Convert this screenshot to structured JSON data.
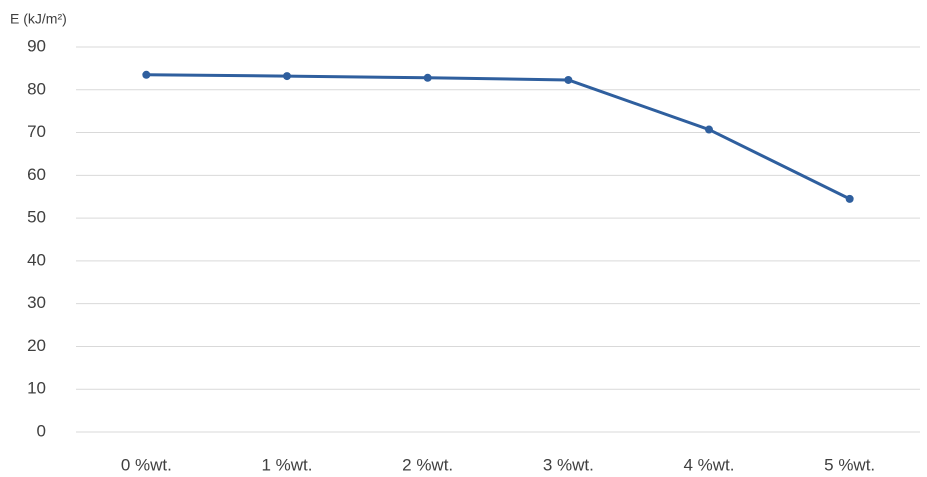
{
  "chart_data": {
    "type": "line",
    "y_label": "E (kJ/m²)",
    "categories": [
      "0 %wt.",
      "1 %wt.",
      "2 %wt.",
      "3 %wt.",
      "4 %wt.",
      "5 %wt."
    ],
    "series": [
      {
        "name": "E",
        "color": "#2f5f9e",
        "values": [
          83.5,
          83.2,
          82.8,
          82.3,
          70.7,
          54.5
        ]
      }
    ],
    "ylim": [
      0,
      90
    ],
    "yticks": [
      0,
      10,
      20,
      30,
      40,
      50,
      60,
      70,
      80,
      90
    ],
    "grid": true
  }
}
